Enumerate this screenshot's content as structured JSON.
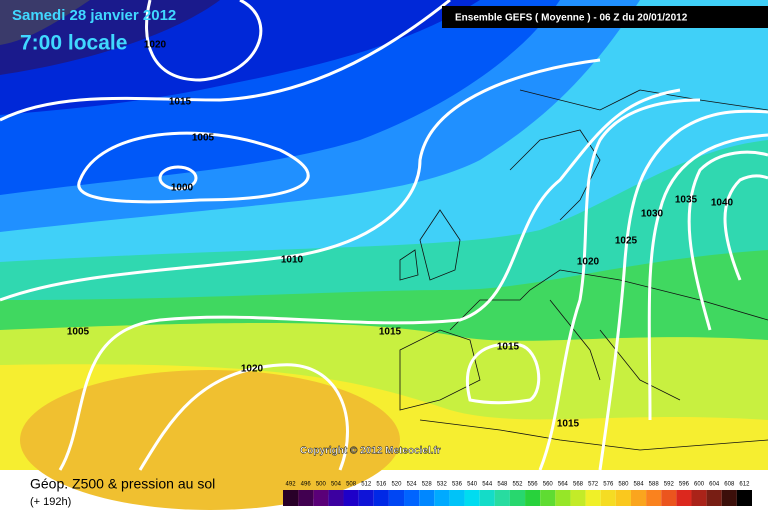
{
  "header": {
    "date": "Samedi 28 janvier 2012",
    "time": "7:00 locale",
    "model": "Ensemble GEFS ( Moyenne )  -  06 Z du 20/01/2012"
  },
  "isobar_labels": [
    "1020",
    "1015",
    "1005",
    "1000",
    "1010",
    "1005",
    "1020",
    "1015",
    "1015",
    "1015",
    "1020",
    "1025",
    "1030",
    "1035",
    "1040"
  ],
  "copyright": "Copyright © 2012 Meteociel.fr",
  "footer": {
    "title": "Géop. Z500 & pression au sol",
    "lead": "(+ 192h)"
  },
  "legend": {
    "values": [
      492,
      496,
      500,
      504,
      508,
      512,
      516,
      520,
      524,
      528,
      532,
      536,
      540,
      544,
      548,
      552,
      556,
      560,
      564,
      568,
      572,
      576,
      580,
      584,
      588,
      592,
      596,
      600,
      604,
      608,
      612
    ]
  }
}
